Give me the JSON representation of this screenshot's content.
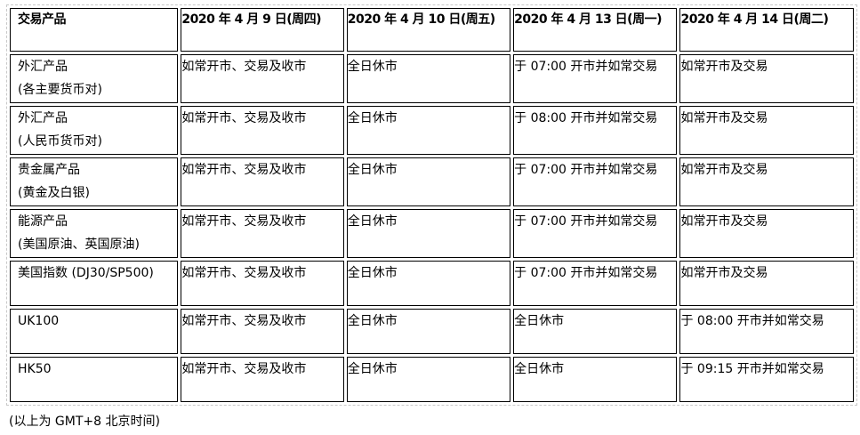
{
  "table": {
    "headers": [
      "交易产品",
      "2020 年 4 月 9 日(周四)",
      "2020 年 4 月 10 日(周五)",
      "2020 年 4 月 13 日(周一)",
      "2020 年 4 月 14 日(周二)"
    ],
    "rows": [
      {
        "product": [
          "外汇产品",
          "(各主要货币对)"
        ],
        "cells": [
          "如常开市、交易及收市",
          "全日休市",
          "于 07:00 开市并如常交易",
          "如常开市及交易"
        ]
      },
      {
        "product": [
          "外汇产品",
          "(人民币货币对)"
        ],
        "cells": [
          "如常开市、交易及收市",
          "全日休市",
          "于 08:00 开市并如常交易",
          "如常开市及交易"
        ]
      },
      {
        "product": [
          "贵金属产品",
          "(黄金及白银)"
        ],
        "cells": [
          "如常开市、交易及收市",
          "全日休市",
          "于 07:00 开市并如常交易",
          "如常开市及交易"
        ]
      },
      {
        "product": [
          "能源产品",
          "(美国原油、英国原油)"
        ],
        "cells": [
          "如常开市、交易及收市",
          "全日休市",
          "于 07:00 开市并如常交易",
          "如常开市及交易"
        ]
      },
      {
        "product": [
          "美国指数 (DJ30/SP500)"
        ],
        "cells": [
          "如常开市、交易及收市",
          "全日休市",
          "于 07:00 开市并如常交易",
          "如常开市及交易"
        ]
      },
      {
        "product": [
          "UK100"
        ],
        "cells": [
          "如常开市、交易及收市",
          "全日休市",
          "全日休市",
          "于 08:00 开市并如常交易"
        ]
      },
      {
        "product": [
          "HK50"
        ],
        "cells": [
          "如常开市、交易及收市",
          "全日休市",
          "全日休市",
          "于 09:15 开市并如常交易"
        ]
      }
    ]
  },
  "note": "(以上为 GMT+8 北京时间)"
}
